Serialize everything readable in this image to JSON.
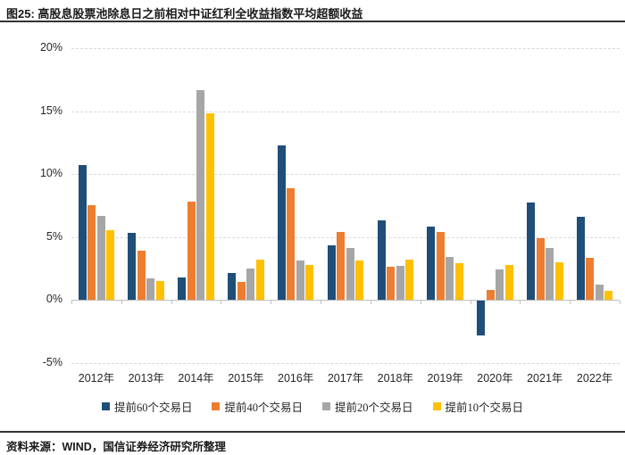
{
  "title": "图25: 高股息股票池除息日之前相对中证红利全收益指数平均超额收益",
  "source": "资料来源：WIND，国信证券经济研究所整理",
  "colors": {
    "series_blue": "#1F4E79",
    "series_orange": "#ED7D31",
    "series_gray": "#A6A6A6",
    "series_yellow": "#FFC000",
    "gridline": "#d9d9d9",
    "axis": "#bfbfbf",
    "rule": "#333333"
  },
  "chart_data": {
    "type": "bar",
    "title": "图25: 高股息股票池除息日之前相对中证红利全收益指数平均超额收益",
    "categories": [
      "2012年",
      "2013年",
      "2014年",
      "2015年",
      "2016年",
      "2017年",
      "2018年",
      "2019年",
      "2020年",
      "2021年",
      "2022年"
    ],
    "series": [
      {
        "name": "提前60个交易日",
        "color": "#1F4E79",
        "values": [
          10.7,
          5.3,
          1.8,
          2.1,
          12.3,
          4.3,
          6.3,
          5.8,
          -2.8,
          7.7,
          6.6
        ]
      },
      {
        "name": "提前40个交易日",
        "color": "#ED7D31",
        "values": [
          7.5,
          3.9,
          7.8,
          1.4,
          8.9,
          5.4,
          2.6,
          5.4,
          0.8,
          4.9,
          3.3
        ]
      },
      {
        "name": "提前20个交易日",
        "color": "#A6A6A6",
        "values": [
          6.7,
          1.7,
          16.7,
          2.5,
          3.1,
          4.1,
          2.7,
          3.4,
          2.4,
          4.1,
          1.2
        ]
      },
      {
        "name": "提前10个交易日",
        "color": "#FFC000",
        "values": [
          5.5,
          1.5,
          14.8,
          3.2,
          2.8,
          3.1,
          3.2,
          2.9,
          2.8,
          3.0,
          0.7
        ]
      }
    ],
    "xlabel": "",
    "ylabel": "",
    "ylim": [
      -5,
      20
    ],
    "yticks": [
      20,
      15,
      10,
      5,
      0,
      -5
    ],
    "ytick_suffix": "%",
    "grid": "horizontal-dashed",
    "legend_position": "bottom"
  }
}
